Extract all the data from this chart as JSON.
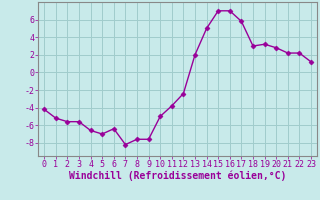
{
  "x": [
    0,
    1,
    2,
    3,
    4,
    5,
    6,
    7,
    8,
    9,
    10,
    11,
    12,
    13,
    14,
    15,
    16,
    17,
    18,
    19,
    20,
    21,
    22,
    23
  ],
  "y": [
    -4.2,
    -5.2,
    -5.6,
    -5.6,
    -6.6,
    -7.0,
    -6.4,
    -8.2,
    -7.6,
    -7.6,
    -5.0,
    -3.8,
    -2.4,
    2.0,
    5.0,
    7.0,
    7.0,
    5.8,
    3.0,
    3.2,
    2.8,
    2.2,
    2.2,
    1.2
  ],
  "line_color": "#990099",
  "marker": "D",
  "markersize": 2.5,
  "linewidth": 1.0,
  "bg_color": "#c8eaea",
  "grid_color": "#a0cccc",
  "xlabel": "Windchill (Refroidissement éolien,°C)",
  "xlabel_color": "#990099",
  "xlabel_fontsize": 7.0,
  "tick_color": "#990099",
  "tick_fontsize": 6.0,
  "yticks": [
    -8,
    -6,
    -4,
    -2,
    0,
    2,
    4,
    6
  ],
  "xlim": [
    -0.5,
    23.5
  ],
  "ylim": [
    -9.5,
    8.0
  ]
}
